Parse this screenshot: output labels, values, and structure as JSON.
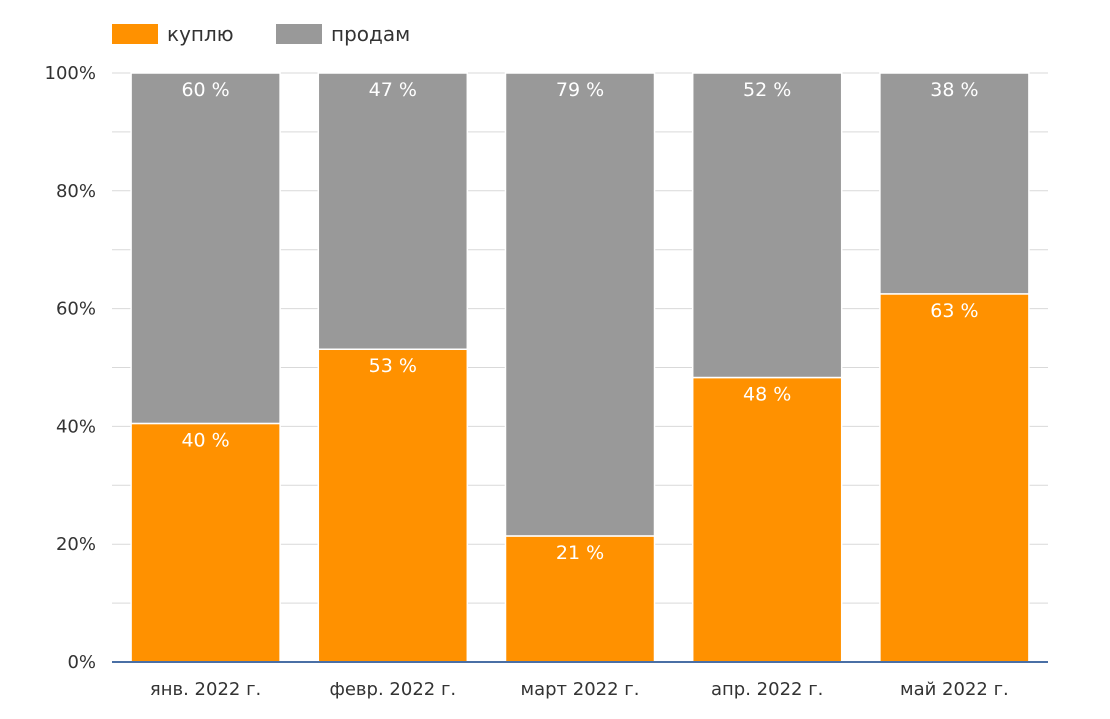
{
  "chart_data": {
    "type": "bar",
    "stacked": true,
    "percent_stacked": true,
    "categories": [
      "янв. 2022 г.",
      "февр. 2022 г.",
      "март 2022 г.",
      "апр. 2022 г.",
      "май 2022 г."
    ],
    "series": [
      {
        "name": "куплю",
        "color": "#ff9100",
        "values": [
          40.5,
          53.1,
          21.4,
          48.3,
          62.5
        ],
        "labels": [
          "40 %",
          "53 %",
          "21 %",
          "48 %",
          "63 %"
        ]
      },
      {
        "name": "продам",
        "color": "#999999",
        "values": [
          59.5,
          46.9,
          78.6,
          51.7,
          37.5
        ],
        "labels": [
          "60 %",
          "47 %",
          "79 %",
          "52 %",
          "38 %"
        ]
      }
    ],
    "ylim": [
      0,
      100
    ],
    "yticks": [
      0,
      20,
      40,
      60,
      80,
      100
    ],
    "ytick_labels": [
      "0%",
      "20%",
      "40%",
      "60%",
      "80%",
      "100%"
    ],
    "grid": true,
    "legend_position": "top-left",
    "title": "",
    "xlabel": "",
    "ylabel": ""
  },
  "colors": {
    "axis": "#4a6fa5",
    "grid": "#d9d9d9",
    "text": "#333333",
    "data_label": "#ffffff"
  }
}
